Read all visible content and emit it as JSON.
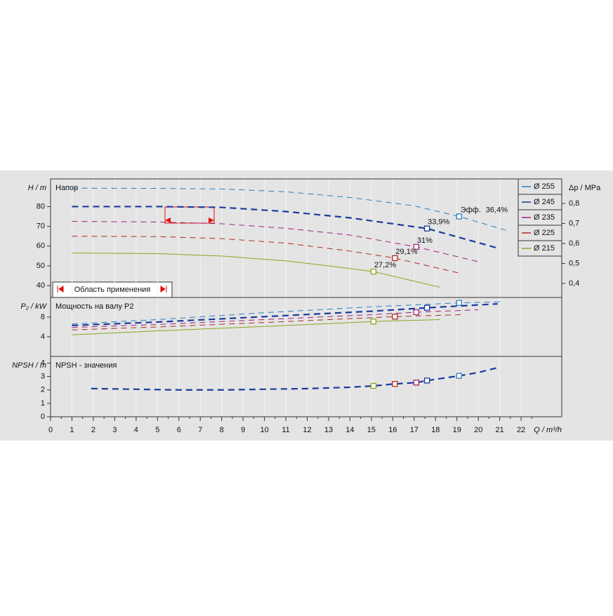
{
  "chart_data": [
    {
      "type": "line",
      "title": "Напор",
      "ylabel": "H / m",
      "y2label": "Δp / MPa",
      "xlim": [
        0,
        23.9
      ],
      "ylim": [
        34,
        94
      ],
      "yticks": [
        40,
        50,
        60,
        70,
        80
      ],
      "y2lim": [
        0.33,
        0.923
      ],
      "y2ticks": [
        {
          "value": 0.4,
          "label": "0,4"
        },
        {
          "value": 0.5,
          "label": "0,5"
        },
        {
          "value": 0.6,
          "label": "0,6"
        },
        {
          "value": 0.7,
          "label": "0,7"
        },
        {
          "value": 0.8,
          "label": "0,8"
        }
      ],
      "grid": true,
      "legend": "upper right",
      "efficiency_prefix": "Эфф.",
      "range_label": "Область применения",
      "series": [
        {
          "name": "Ø 255",
          "color": "#2a7fc0",
          "line_style": "dashed",
          "x": [
            1,
            5,
            8,
            11,
            14,
            17,
            19.1,
            21.3
          ],
          "values": [
            89.3,
            89.2,
            88.9,
            87.5,
            84.6,
            80.4,
            75,
            68
          ],
          "marker_x": 19.1,
          "marker_value": 75,
          "efficiency": 36.4,
          "efficiency_label": "36,4%"
        },
        {
          "name": "Ø 245",
          "color": "#1b3a9c",
          "line_style": "dashed-bold",
          "x": [
            1,
            5,
            8,
            11,
            14,
            17.6,
            20.9
          ],
          "values": [
            80,
            80,
            79.6,
            77.5,
            74.3,
            68.9,
            59
          ],
          "marker_x": 17.6,
          "marker_value": 68.9,
          "efficiency": 33.9,
          "efficiency_label": "33,9%"
        },
        {
          "name": "Ø 235",
          "color": "#a0207a",
          "line_style": "dashed",
          "x": [
            1,
            5,
            8,
            11,
            14,
            17.1,
            20
          ],
          "values": [
            72.5,
            72.2,
            71.3,
            69,
            65.6,
            59.6,
            52.1
          ],
          "marker_x": 17.1,
          "marker_value": 59.6,
          "efficiency": 31,
          "efficiency_label": "31%"
        },
        {
          "name": "Ø 225",
          "color": "#b02a20",
          "line_style": "dashed",
          "x": [
            1,
            5,
            8,
            11,
            14,
            16.1,
            19.2
          ],
          "values": [
            65,
            64.8,
            63.8,
            61.5,
            57.5,
            53.9,
            46.1
          ],
          "marker_x": 16.1,
          "marker_value": 53.9,
          "efficiency": 29.1,
          "efficiency_label": "29,1%"
        },
        {
          "name": "Ø 215",
          "color": "#8aa61e",
          "line_style": "solid",
          "x": [
            1,
            5,
            8,
            11,
            13,
            15.1,
            18.2
          ],
          "values": [
            56.5,
            56.2,
            55,
            52.5,
            50,
            47.1,
            39.2
          ],
          "marker_x": 15.1,
          "marker_value": 47.1,
          "efficiency": 27.2,
          "efficiency_label": "27,2%"
        }
      ]
    },
    {
      "type": "line",
      "title": "Мощность на валу P2",
      "ylabel": "P₂ / kW",
      "xlim": [
        0,
        23.9
      ],
      "ylim": [
        0,
        12
      ],
      "yticks": [
        4,
        8
      ],
      "grid": true,
      "series": [
        {
          "color": "#2a7fc0",
          "line_style": "dashed",
          "x": [
            1,
            5,
            10,
            15,
            19.1,
            21
          ],
          "values": [
            6.6,
            7.5,
            8.9,
            10.1,
            10.9,
            11.1
          ],
          "marker_x": 19.1,
          "marker_value": 10.9
        },
        {
          "color": "#1b3a9c",
          "line_style": "dashed-bold",
          "x": [
            1,
            5,
            10,
            15,
            17.6,
            20.9
          ],
          "values": [
            6.3,
            7,
            8.1,
            9.2,
            9.9,
            10.7
          ],
          "marker_x": 17.6,
          "marker_value": 9.9
        },
        {
          "color": "#a0207a",
          "line_style": "dashed",
          "x": [
            1,
            5,
            10,
            15,
            17.1,
            20
          ],
          "values": [
            5.9,
            6.5,
            7.5,
            8.5,
            9,
            9.5
          ],
          "marker_x": 17.1,
          "marker_value": 9
        },
        {
          "color": "#b02a20",
          "line_style": "dashed",
          "x": [
            1,
            5,
            10,
            16.1,
            19.2
          ],
          "values": [
            5.4,
            6,
            6.9,
            8.1,
            8.5
          ],
          "marker_x": 16.1,
          "marker_value": 8.1
        },
        {
          "color": "#8aa61e",
          "line_style": "solid",
          "x": [
            1,
            5,
            10,
            15.1,
            18.2
          ],
          "values": [
            4.4,
            5.2,
            6.1,
            7.1,
            7.5
          ],
          "marker_x": 15.1,
          "marker_value": 7.1
        }
      ]
    },
    {
      "type": "line",
      "title": "NPSH - значения",
      "ylabel": "NPSH / m",
      "xlabel": "Q / m³/h",
      "xlim": [
        0,
        23.9
      ],
      "ylim": [
        0,
        4.5
      ],
      "yticks": [
        0,
        1,
        2,
        3,
        4
      ],
      "xticks": [
        0,
        1,
        2,
        3,
        4,
        5,
        6,
        7,
        8,
        9,
        10,
        11,
        12,
        13,
        14,
        15,
        16,
        17,
        18,
        19,
        20,
        21,
        22
      ],
      "grid": true,
      "series": [
        {
          "color": "#1b3a9c",
          "line_style": "dashed-bold",
          "x": [
            1.9,
            4,
            6,
            8,
            10,
            12,
            14,
            15.1,
            16.1,
            17.1,
            17.6,
            19.1,
            20,
            21
          ],
          "values": [
            2.1,
            2.05,
            2,
            2,
            2.05,
            2.1,
            2.2,
            2.3,
            2.45,
            2.55,
            2.7,
            3.05,
            3.3,
            3.7
          ]
        }
      ],
      "markers": [
        {
          "x": 19.1,
          "value": 3.05,
          "color": "#2a7fc0"
        },
        {
          "x": 17.6,
          "value": 2.7,
          "color": "#1b3a9c"
        },
        {
          "x": 17.1,
          "value": 2.55,
          "color": "#a0207a"
        },
        {
          "x": 16.1,
          "value": 2.45,
          "color": "#b02a20"
        },
        {
          "x": 15.1,
          "value": 2.3,
          "color": "#8aa61e"
        }
      ]
    }
  ]
}
